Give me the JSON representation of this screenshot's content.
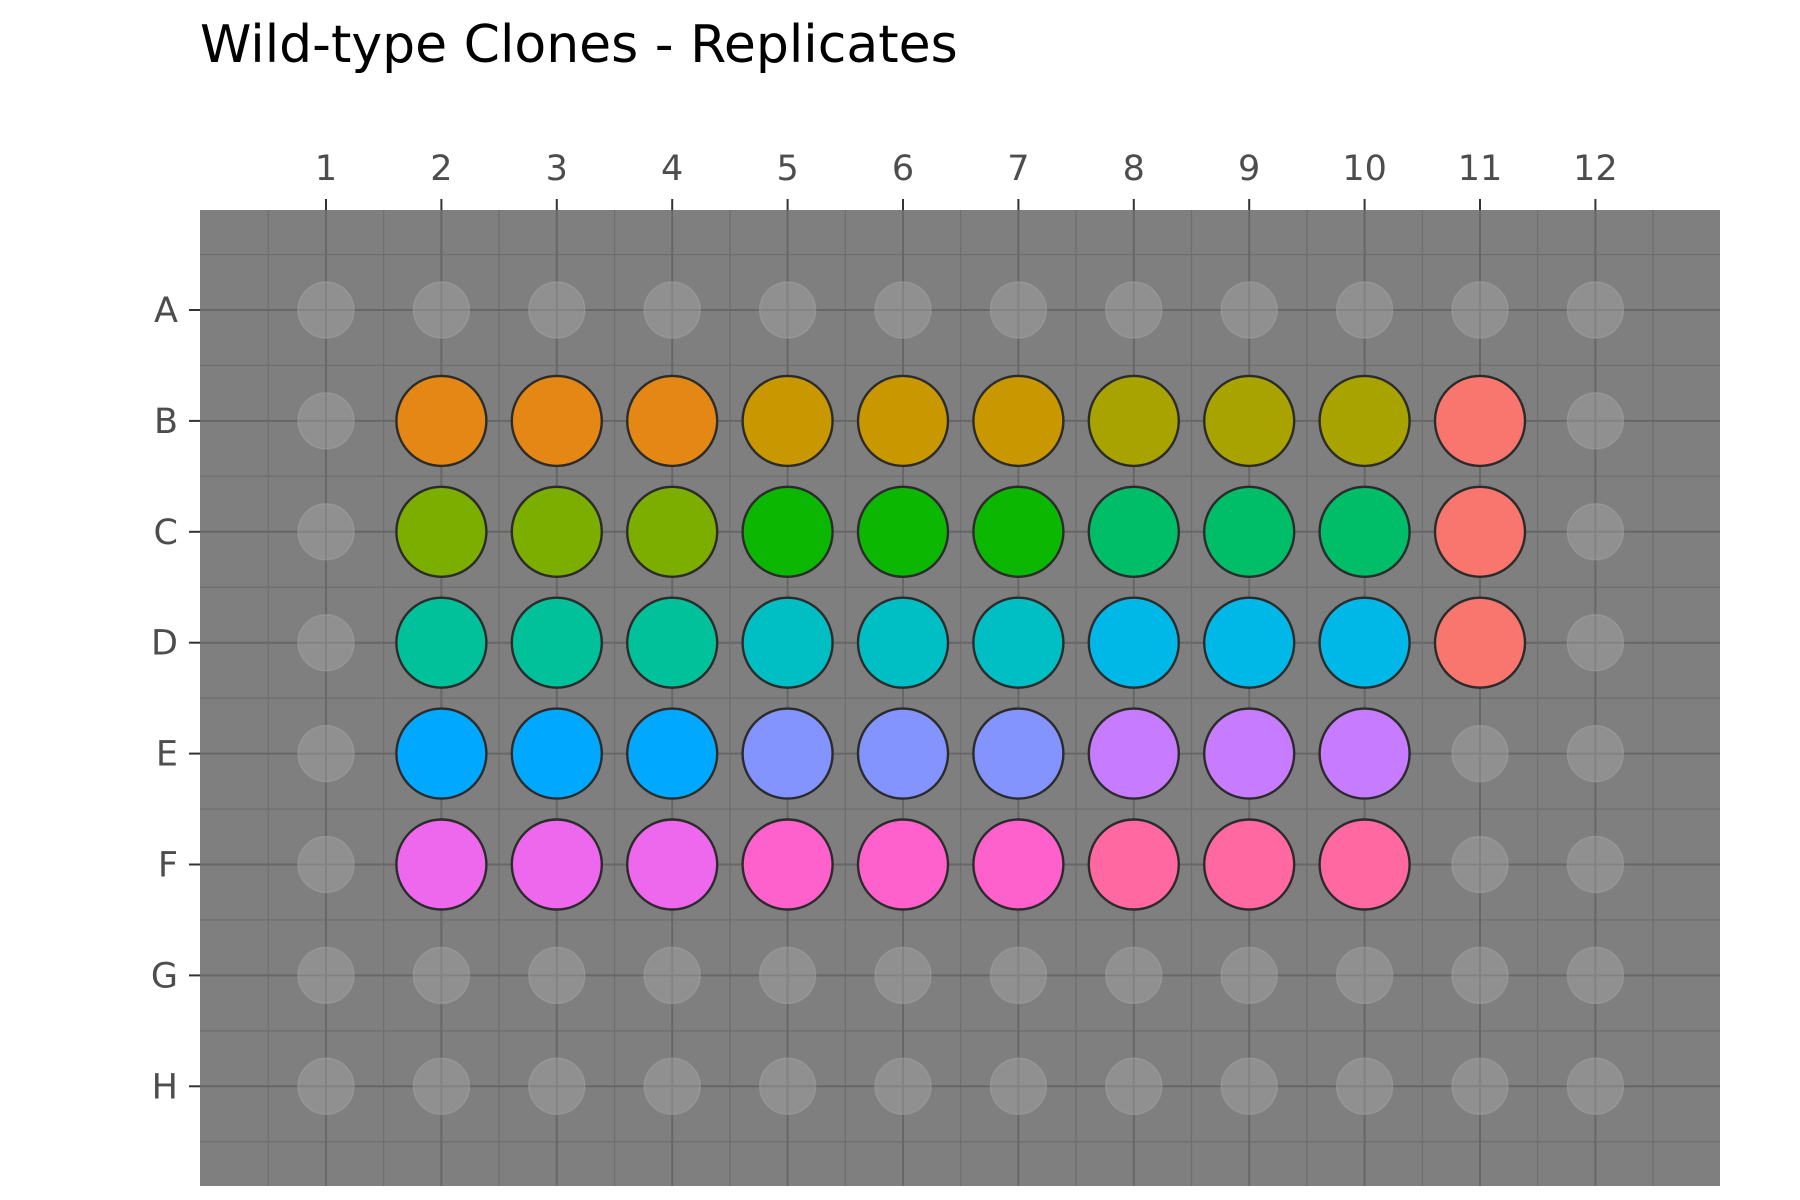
{
  "chart_data": {
    "type": "plate-map",
    "title": "Wild-type Clones - Replicates",
    "columns": [
      "1",
      "2",
      "3",
      "4",
      "5",
      "6",
      "7",
      "8",
      "9",
      "10",
      "11",
      "12"
    ],
    "rows": [
      "A",
      "B",
      "C",
      "D",
      "E",
      "F",
      "G",
      "H"
    ],
    "background_color": "#7f7f7f",
    "empty_well_color": "#a6a6a6",
    "grid": true,
    "wells": [
      {
        "row": "B",
        "col": 2,
        "color": "#E58714"
      },
      {
        "row": "B",
        "col": 3,
        "color": "#E58714"
      },
      {
        "row": "B",
        "col": 4,
        "color": "#E58714"
      },
      {
        "row": "B",
        "col": 5,
        "color": "#C99800"
      },
      {
        "row": "B",
        "col": 6,
        "color": "#C99800"
      },
      {
        "row": "B",
        "col": 7,
        "color": "#C99800"
      },
      {
        "row": "B",
        "col": 8,
        "color": "#A9A300"
      },
      {
        "row": "B",
        "col": 9,
        "color": "#A9A300"
      },
      {
        "row": "B",
        "col": 10,
        "color": "#A9A300"
      },
      {
        "row": "B",
        "col": 11,
        "color": "#F8766D"
      },
      {
        "row": "C",
        "col": 2,
        "color": "#7CAE00"
      },
      {
        "row": "C",
        "col": 3,
        "color": "#7CAE00"
      },
      {
        "row": "C",
        "col": 4,
        "color": "#7CAE00"
      },
      {
        "row": "C",
        "col": 5,
        "color": "#0CB702"
      },
      {
        "row": "C",
        "col": 6,
        "color": "#0CB702"
      },
      {
        "row": "C",
        "col": 7,
        "color": "#0CB702"
      },
      {
        "row": "C",
        "col": 8,
        "color": "#00BE67"
      },
      {
        "row": "C",
        "col": 9,
        "color": "#00BE67"
      },
      {
        "row": "C",
        "col": 10,
        "color": "#00BE67"
      },
      {
        "row": "C",
        "col": 11,
        "color": "#F8766D"
      },
      {
        "row": "D",
        "col": 2,
        "color": "#00C19A"
      },
      {
        "row": "D",
        "col": 3,
        "color": "#00C19A"
      },
      {
        "row": "D",
        "col": 4,
        "color": "#00C19A"
      },
      {
        "row": "D",
        "col": 5,
        "color": "#00BFC4"
      },
      {
        "row": "D",
        "col": 6,
        "color": "#00BFC4"
      },
      {
        "row": "D",
        "col": 7,
        "color": "#00BFC4"
      },
      {
        "row": "D",
        "col": 8,
        "color": "#00B8E7"
      },
      {
        "row": "D",
        "col": 9,
        "color": "#00B8E7"
      },
      {
        "row": "D",
        "col": 10,
        "color": "#00B8E7"
      },
      {
        "row": "D",
        "col": 11,
        "color": "#F8766D"
      },
      {
        "row": "E",
        "col": 2,
        "color": "#00A9FF"
      },
      {
        "row": "E",
        "col": 3,
        "color": "#00A9FF"
      },
      {
        "row": "E",
        "col": 4,
        "color": "#00A9FF"
      },
      {
        "row": "E",
        "col": 5,
        "color": "#8494FF"
      },
      {
        "row": "E",
        "col": 6,
        "color": "#8494FF"
      },
      {
        "row": "E",
        "col": 7,
        "color": "#8494FF"
      },
      {
        "row": "E",
        "col": 8,
        "color": "#C77CFF"
      },
      {
        "row": "E",
        "col": 9,
        "color": "#C77CFF"
      },
      {
        "row": "E",
        "col": 10,
        "color": "#C77CFF"
      },
      {
        "row": "F",
        "col": 2,
        "color": "#ED68ED"
      },
      {
        "row": "F",
        "col": 3,
        "color": "#ED68ED"
      },
      {
        "row": "F",
        "col": 4,
        "color": "#ED68ED"
      },
      {
        "row": "F",
        "col": 5,
        "color": "#FF61CC"
      },
      {
        "row": "F",
        "col": 6,
        "color": "#FF61CC"
      },
      {
        "row": "F",
        "col": 7,
        "color": "#FF61CC"
      },
      {
        "row": "F",
        "col": 8,
        "color": "#FF68A1"
      },
      {
        "row": "F",
        "col": 9,
        "color": "#FF68A1"
      },
      {
        "row": "F",
        "col": 10,
        "color": "#FF68A1"
      }
    ]
  }
}
